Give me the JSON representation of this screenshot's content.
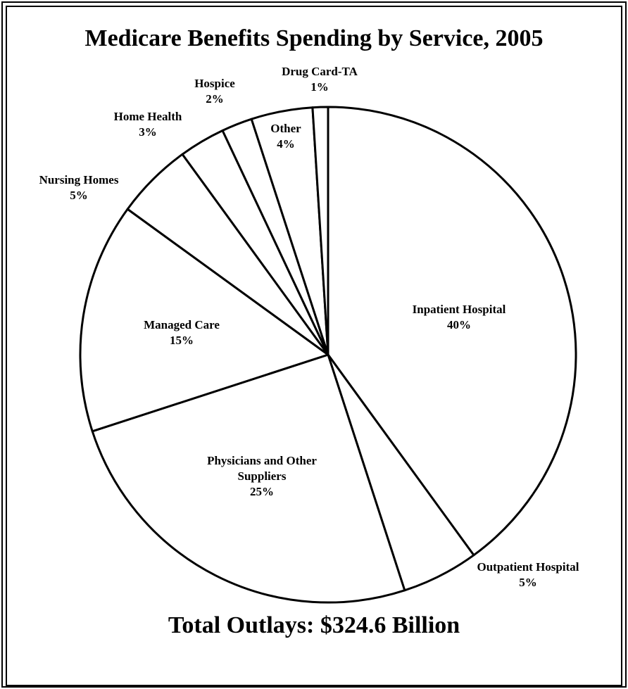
{
  "chart_data": {
    "type": "pie",
    "title": "Medicare Benefits Spending by Service, 2005",
    "footer": "Total Outlays: $324.6 Billion",
    "slices": [
      {
        "label_lines": [
          "Inpatient Hospital"
        ],
        "pct_text": "40%",
        "value": 40
      },
      {
        "label_lines": [
          "Outpatient Hospital"
        ],
        "pct_text": "5%",
        "value": 5
      },
      {
        "label_lines": [
          "Physicians and Other",
          "Suppliers"
        ],
        "pct_text": "25%",
        "value": 25
      },
      {
        "label_lines": [
          "Managed Care"
        ],
        "pct_text": "15%",
        "value": 15
      },
      {
        "label_lines": [
          "Nursing Homes"
        ],
        "pct_text": "5%",
        "value": 5
      },
      {
        "label_lines": [
          "Home Health"
        ],
        "pct_text": "3%",
        "value": 3
      },
      {
        "label_lines": [
          "Hospice"
        ],
        "pct_text": "2%",
        "value": 2
      },
      {
        "label_lines": [
          "Other"
        ],
        "pct_text": "4%",
        "value": 4
      },
      {
        "label_lines": [
          "Drug Card-TA"
        ],
        "pct_text": "1%",
        "value": 1
      }
    ],
    "colors": {
      "stroke": "#000000",
      "background": "#ffffff"
    }
  }
}
